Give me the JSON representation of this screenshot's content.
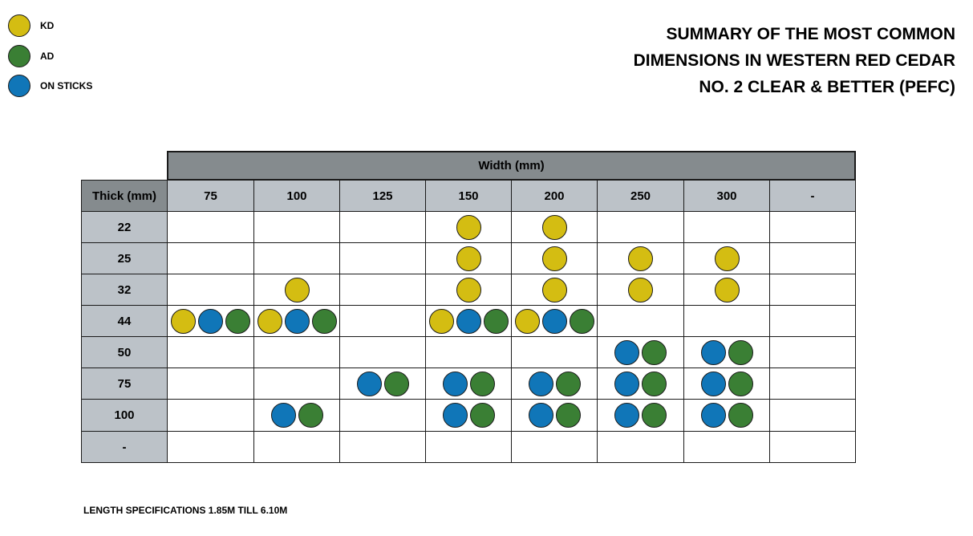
{
  "legend": [
    {
      "label": "KD",
      "color": "#d4bd12"
    },
    {
      "label": "AD",
      "color": "#3a7f34"
    },
    {
      "label": "ON STICKS",
      "color": "#1076b8"
    }
  ],
  "title_lines": [
    "SUMMARY OF THE MOST COMMON",
    "DIMENSIONS IN WESTERN RED CEDAR",
    "NO. 2 CLEAR & BETTER (PEFC)"
  ],
  "table": {
    "width_header": "Width (mm)",
    "thick_header": "Thick (mm)",
    "widths": [
      "75",
      "100",
      "125",
      "150",
      "200",
      "250",
      "300",
      "-"
    ],
    "rows": [
      {
        "thick": "22",
        "cells": [
          [],
          [],
          [],
          [
            "KD"
          ],
          [
            "KD"
          ],
          [],
          [],
          []
        ]
      },
      {
        "thick": "25",
        "cells": [
          [],
          [],
          [],
          [
            "KD"
          ],
          [
            "KD"
          ],
          [
            "KD"
          ],
          [
            "KD"
          ],
          []
        ]
      },
      {
        "thick": "32",
        "cells": [
          [],
          [
            "KD"
          ],
          [],
          [
            "KD"
          ],
          [
            "KD"
          ],
          [
            "KD"
          ],
          [
            "KD"
          ],
          []
        ]
      },
      {
        "thick": "44",
        "cells": [
          [
            "KD",
            "ON STICKS",
            "AD"
          ],
          [
            "KD",
            "ON STICKS",
            "AD"
          ],
          [],
          [
            "KD",
            "ON STICKS",
            "AD"
          ],
          [
            "KD",
            "ON STICKS",
            "AD"
          ],
          [],
          [],
          []
        ]
      },
      {
        "thick": "50",
        "cells": [
          [],
          [],
          [],
          [],
          [],
          [
            "ON STICKS",
            "AD"
          ],
          [
            "ON STICKS",
            "AD"
          ],
          []
        ]
      },
      {
        "thick": "75",
        "cells": [
          [],
          [],
          [
            "ON STICKS",
            "AD"
          ],
          [
            "ON STICKS",
            "AD"
          ],
          [
            "ON STICKS",
            "AD"
          ],
          [
            "ON STICKS",
            "AD"
          ],
          [
            "ON STICKS",
            "AD"
          ],
          []
        ]
      },
      {
        "thick": "100",
        "cells": [
          [],
          [
            "ON STICKS",
            "AD"
          ],
          [],
          [
            "ON STICKS",
            "AD"
          ],
          [
            "ON STICKS",
            "AD"
          ],
          [
            "ON STICKS",
            "AD"
          ],
          [
            "ON STICKS",
            "AD"
          ],
          []
        ]
      },
      {
        "thick": "-",
        "cells": [
          [],
          [],
          [],
          [],
          [],
          [],
          [],
          []
        ]
      }
    ]
  },
  "footnote": "LENGTH SPECIFICATIONS 1.85M TILL 6.10M"
}
